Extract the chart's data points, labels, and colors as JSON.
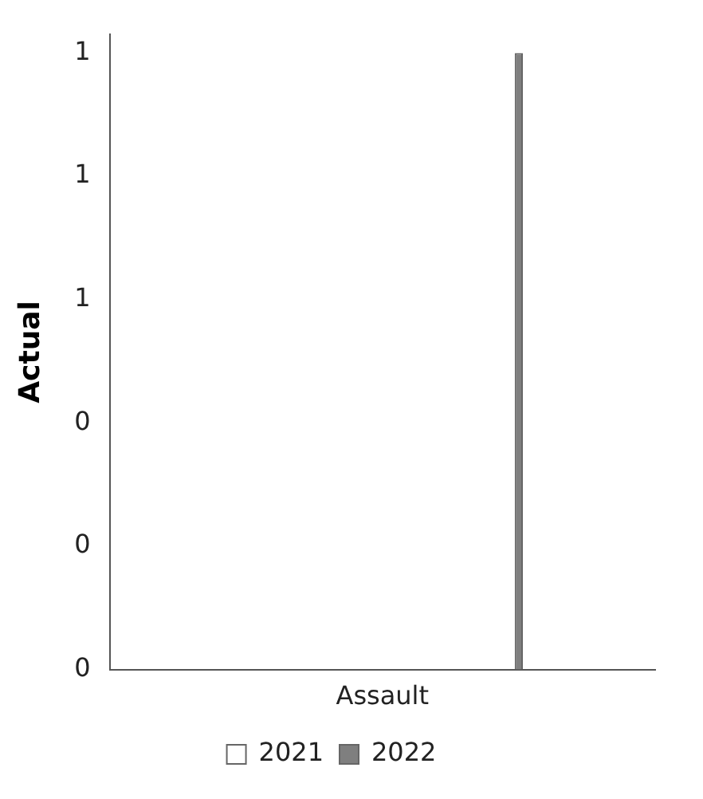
{
  "chart_data": {
    "type": "bar",
    "ylabel": "Actual",
    "categories": [
      "Assault"
    ],
    "series": [
      {
        "name": "2021",
        "color": "#ffffff",
        "values": [
          0
        ]
      },
      {
        "name": "2022",
        "color": "#7f7f7f",
        "values": [
          1
        ]
      }
    ],
    "ylim": [
      0,
      1.03
    ],
    "yticks": [
      {
        "value": 0,
        "label": "0"
      },
      {
        "value": 0.2,
        "label": "0"
      },
      {
        "value": 0.4,
        "label": "0"
      },
      {
        "value": 0.6,
        "label": "1"
      },
      {
        "value": 0.8,
        "label": "1"
      },
      {
        "value": 1,
        "label": "1"
      }
    ],
    "grid": false,
    "legend": "bottom"
  }
}
